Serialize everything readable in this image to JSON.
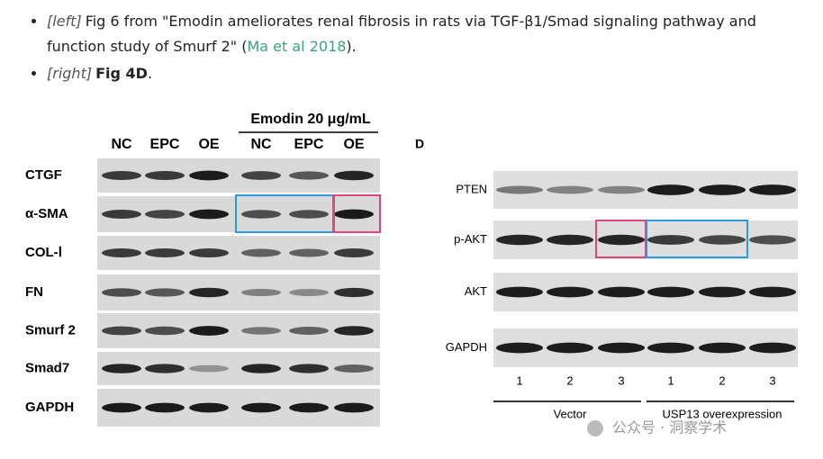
{
  "bullets": [
    {
      "tag": "[left]",
      "text": "Fig 6 from \"Emodin ameliorates renal fibrosis in rats via TGF-β1/Smad signaling pathway and function study of Smurf 2\" (",
      "link": "Ma et al 2018",
      "after": ")."
    },
    {
      "tag": "[right]",
      "bold": "Fig 4D",
      "after": "."
    }
  ],
  "left_figure": {
    "header": "Emodin 20 μg/mL",
    "columns": [
      "NC",
      "EPC",
      "OE",
      "NC",
      "EPC",
      "OE"
    ],
    "rows": [
      "CTGF",
      "α-SMA",
      "COL-Ⅰ",
      "FN",
      "Smurf 2",
      "Smad7",
      "GAPDH"
    ]
  },
  "right_figure": {
    "panel_label": "D",
    "rows": [
      "PTEN",
      "p-AKT",
      "AKT",
      "GAPDH"
    ],
    "lanes": [
      "1",
      "2",
      "3",
      "1",
      "2",
      "3"
    ],
    "groups": [
      "Vector",
      "USP13 overexpression"
    ]
  },
  "watermark": "公众号 · 洞察学术"
}
